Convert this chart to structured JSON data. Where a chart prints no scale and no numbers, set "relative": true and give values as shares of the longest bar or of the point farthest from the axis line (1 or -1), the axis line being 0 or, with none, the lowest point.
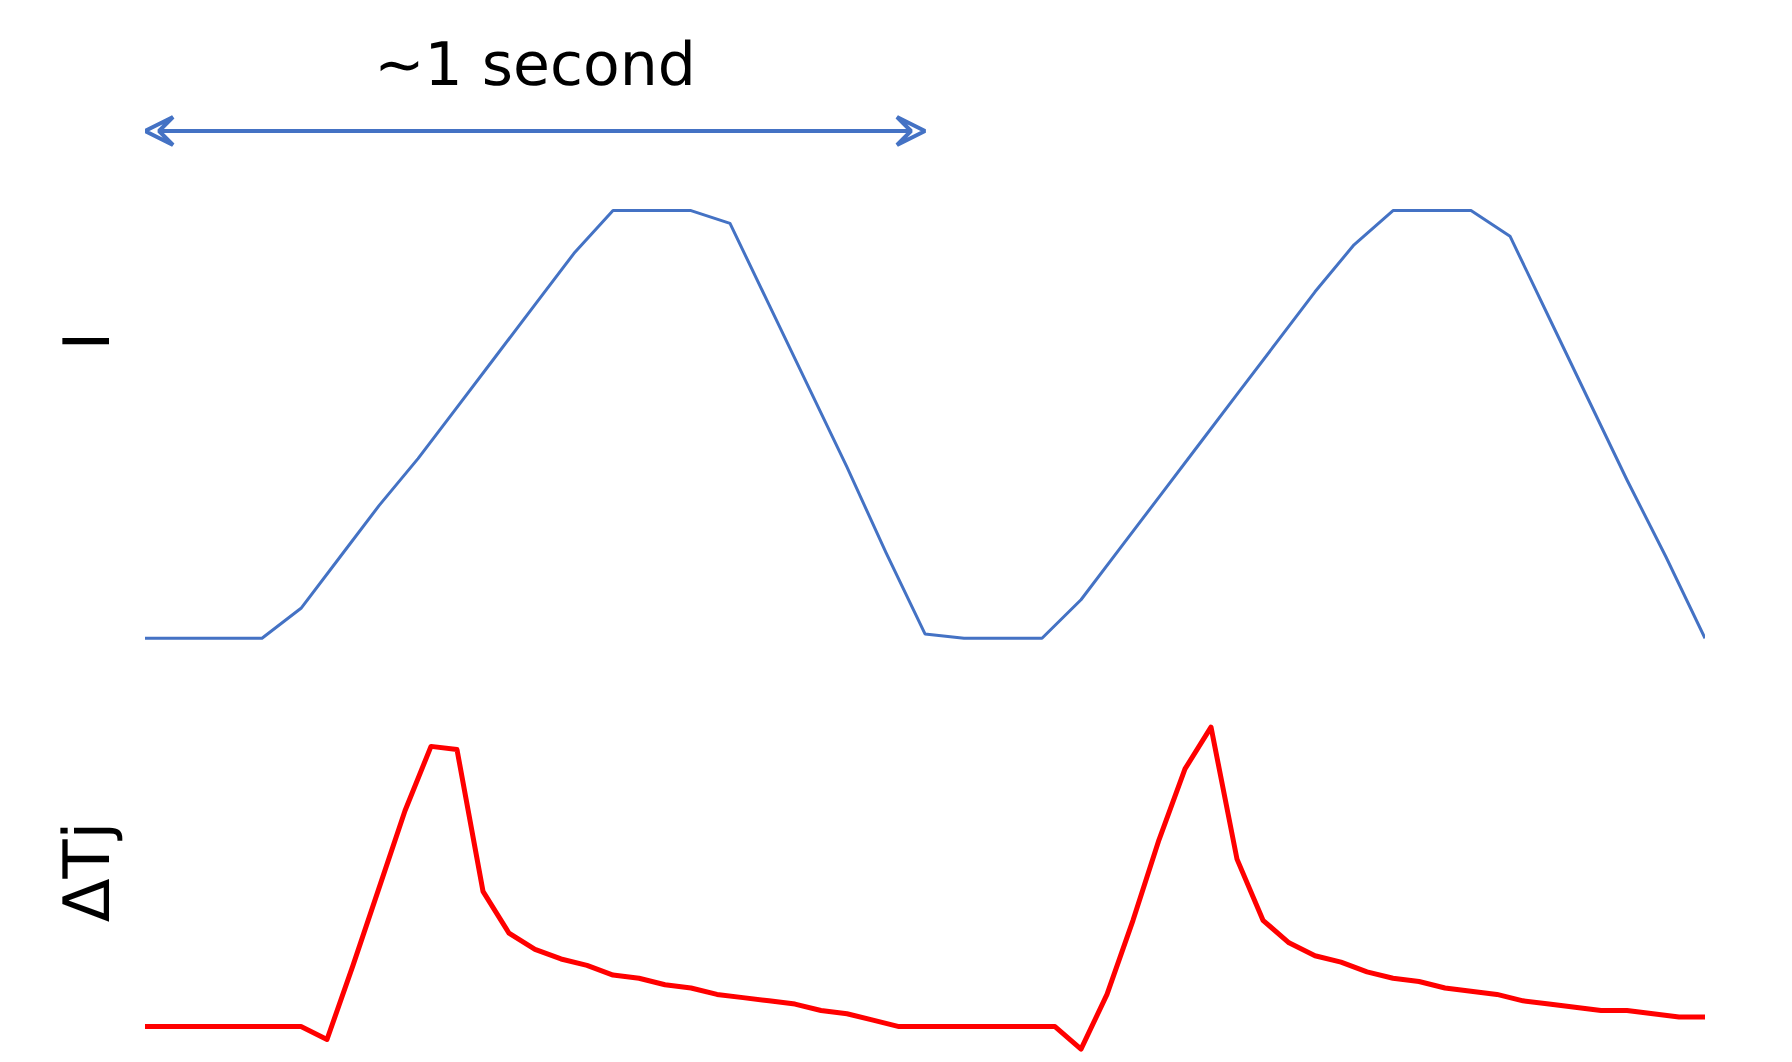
{
  "chart_data": [
    {
      "type": "line",
      "relative": true,
      "ylabel": "I",
      "grid": false,
      "line_style": "solid",
      "tick_labels": false,
      "annotations": [
        "~1 second"
      ],
      "categories": [
        null,
        null,
        null,
        null,
        null,
        null,
        null,
        null,
        null,
        null,
        null,
        null,
        null,
        null,
        null,
        null,
        null,
        null,
        null,
        null,
        null,
        null,
        null,
        null,
        null,
        null,
        null,
        null,
        null,
        null,
        null,
        null,
        null,
        null,
        null,
        null,
        null,
        null,
        null,
        null,
        null
      ],
      "series": [
        {
          "color": "#4472c4",
          "values": [
            0,
            0,
            0,
            0,
            0.07,
            0.19,
            0.31,
            0.42,
            0.54,
            0.66,
            0.78,
            0.9,
            1,
            1,
            1,
            0.97,
            0.78,
            0.59,
            0.4,
            0.2,
            0.01,
            0,
            0,
            0,
            0.09,
            0.21,
            0.33,
            0.45,
            0.57,
            0.69,
            0.81,
            0.92,
            1,
            1,
            1,
            0.94,
            0.75,
            0.56,
            0.37,
            0.19,
            0
          ]
        }
      ]
    },
    {
      "type": "line",
      "relative": true,
      "ylabel": "ΔTj",
      "grid": false,
      "line_style": "solid",
      "tick_labels": false,
      "categories": [
        null,
        null,
        null,
        null,
        null,
        null,
        null,
        null,
        null,
        null,
        null,
        null,
        null,
        null,
        null,
        null,
        null,
        null,
        null,
        null,
        null,
        null,
        null,
        null,
        null,
        null,
        null,
        null,
        null,
        null,
        null,
        null,
        null,
        null,
        null,
        null,
        null,
        null,
        null,
        null,
        null,
        null,
        null,
        null,
        null,
        null,
        null,
        null,
        null,
        null,
        null,
        null,
        null,
        null,
        null,
        null,
        null,
        null,
        null,
        null,
        null
      ],
      "series": [
        {
          "color": "#ff0000",
          "values": [
            0.07,
            0.07,
            0.07,
            0.07,
            0.07,
            0.07,
            0.07,
            0.03,
            0.26,
            0.5,
            0.74,
            0.94,
            0.93,
            0.49,
            0.36,
            0.31,
            0.28,
            0.26,
            0.23,
            0.22,
            0.2,
            0.19,
            0.17,
            0.16,
            0.15,
            0.14,
            0.12,
            0.11,
            0.09,
            0.07,
            0.07,
            0.07,
            0.07,
            0.07,
            0.07,
            0.07,
            0,
            0.17,
            0.4,
            0.65,
            0.87,
            1,
            0.59,
            0.4,
            0.33,
            0.29,
            0.27,
            0.24,
            0.22,
            0.21,
            0.19,
            0.18,
            0.17,
            0.15,
            0.14,
            0.13,
            0.12,
            0.12,
            0.11,
            0.1,
            0.1
          ]
        }
      ]
    }
  ]
}
